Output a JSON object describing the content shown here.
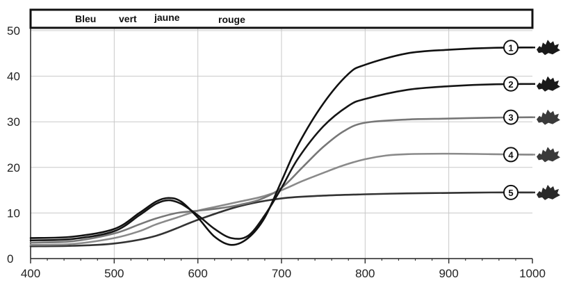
{
  "chart_data": {
    "type": "line",
    "title": "",
    "xlabel": "",
    "ylabel": "",
    "xlim": [
      400,
      1000
    ],
    "ylim": [
      0,
      50
    ],
    "x_ticks": [
      "400",
      "500",
      "600",
      "700",
      "800",
      "900",
      "1000"
    ],
    "y_ticks": [
      "0",
      "10",
      "20",
      "30",
      "40",
      "50"
    ],
    "grid": true,
    "color_bands": {
      "labels": [
        "Bleu",
        "vert",
        "jaune",
        "rouge"
      ]
    },
    "series": [
      {
        "name": "1",
        "color": "#111111",
        "x": [
          400,
          450,
          500,
          530,
          550,
          565,
          580,
          600,
          620,
          640,
          660,
          680,
          700,
          720,
          750,
          780,
          800,
          850,
          900,
          950,
          1000
        ],
        "y": [
          4.5,
          4.8,
          6.5,
          10.0,
          12.5,
          13.3,
          12.5,
          9.0,
          4.8,
          3.0,
          4.5,
          9.0,
          17.0,
          25.0,
          34.0,
          40.5,
          42.5,
          45.0,
          45.8,
          46.2,
          46.3
        ]
      },
      {
        "name": "2",
        "color": "#151515",
        "x": [
          400,
          450,
          500,
          530,
          550,
          565,
          580,
          600,
          620,
          640,
          660,
          680,
          700,
          720,
          750,
          780,
          800,
          850,
          900,
          950,
          1000
        ],
        "y": [
          4.0,
          4.3,
          6.0,
          9.5,
          12.0,
          12.8,
          12.0,
          9.5,
          6.5,
          4.5,
          5.0,
          9.5,
          15.5,
          22.0,
          29.0,
          33.5,
          35.0,
          37.0,
          37.8,
          38.2,
          38.3
        ]
      },
      {
        "name": "3",
        "color": "#777777",
        "x": [
          400,
          450,
          500,
          530,
          550,
          575,
          600,
          625,
          650,
          675,
          700,
          725,
          750,
          775,
          800,
          850,
          900,
          950,
          1000
        ],
        "y": [
          3.5,
          3.8,
          5.5,
          7.5,
          8.8,
          10.0,
          10.5,
          11.0,
          11.8,
          13.0,
          15.5,
          20.0,
          24.5,
          28.0,
          29.8,
          30.5,
          30.7,
          30.9,
          31.0
        ]
      },
      {
        "name": "4",
        "color": "#8a8a8a",
        "x": [
          400,
          450,
          500,
          530,
          550,
          575,
          600,
          625,
          650,
          675,
          700,
          725,
          750,
          775,
          800,
          825,
          850,
          900,
          950,
          1000
        ],
        "y": [
          3.0,
          3.2,
          4.5,
          6.0,
          7.5,
          9.0,
          10.5,
          11.5,
          12.5,
          13.5,
          15.0,
          17.0,
          18.8,
          20.5,
          21.8,
          22.6,
          22.9,
          23.0,
          22.9,
          22.8
        ]
      },
      {
        "name": "5",
        "color": "#333333",
        "x": [
          400,
          450,
          500,
          550,
          600,
          650,
          700,
          750,
          800,
          850,
          900,
          950,
          1000
        ],
        "y": [
          2.7,
          2.8,
          3.3,
          5.0,
          8.5,
          11.5,
          13.2,
          13.8,
          14.1,
          14.3,
          14.4,
          14.5,
          14.5
        ]
      }
    ]
  }
}
